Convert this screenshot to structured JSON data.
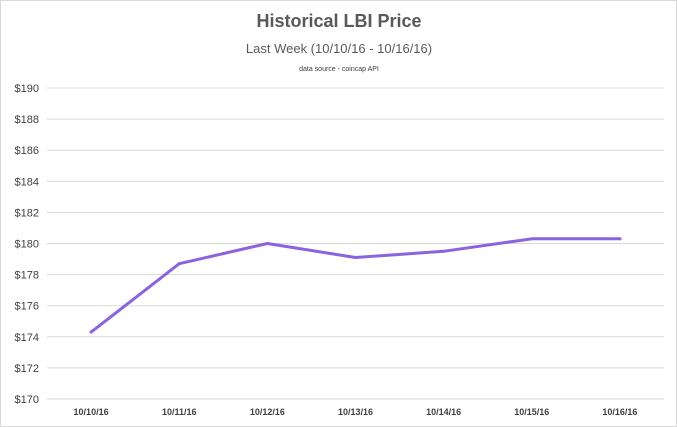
{
  "chart_data": {
    "type": "line",
    "title": "Historical LBI Price",
    "subtitle": "Last Week (10/10/16 - 10/16/16)",
    "source_note": "data source - coincap API",
    "categories": [
      "10/10/16",
      "10/11/16",
      "10/12/16",
      "10/13/16",
      "10/14/16",
      "10/15/16",
      "10/16/16"
    ],
    "series": [
      {
        "values": [
          174.3,
          178.7,
          180.0,
          179.1,
          179.5,
          180.3,
          180.3
        ],
        "color": "#8B63DE"
      }
    ],
    "ylim": [
      170,
      190
    ],
    "yticks": [
      170,
      172,
      174,
      176,
      178,
      180,
      182,
      184,
      186,
      188,
      190
    ],
    "ytick_labels": [
      "$170",
      "$172",
      "$174",
      "$176",
      "$178",
      "$180",
      "$182",
      "$184",
      "$186",
      "$188",
      "$190"
    ],
    "grid": true,
    "xlabel": "",
    "ylabel": ""
  }
}
